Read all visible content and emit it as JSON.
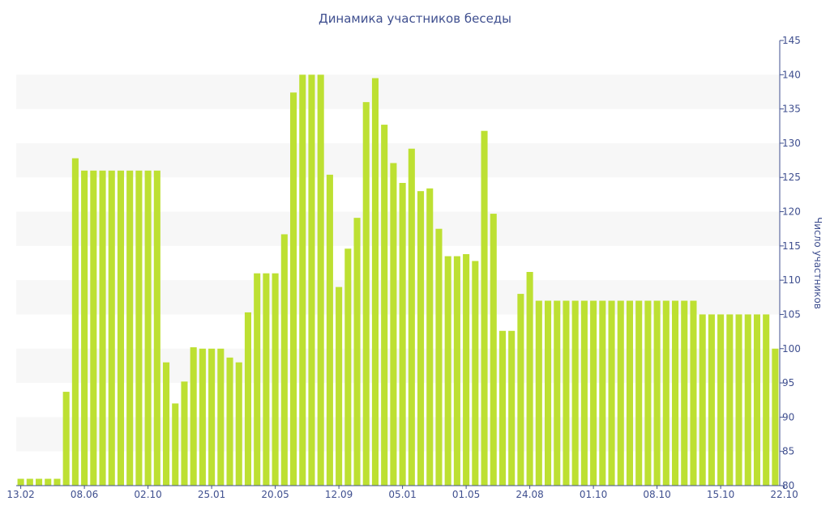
{
  "chart_data": {
    "type": "bar",
    "title": "Динамика участников беседы",
    "ylabel": "Число участников",
    "xlabel": "",
    "ylim": [
      80,
      145
    ],
    "y_ticks": [
      80,
      85,
      90,
      95,
      100,
      105,
      110,
      115,
      120,
      125,
      130,
      135,
      140,
      145
    ],
    "y_axis_position": "right",
    "grid": "alternating horizontal bands",
    "bar_color": "#bde032",
    "x_tick_labels": [
      {
        "label": "13.02",
        "index": 0
      },
      {
        "label": "08.06",
        "index": 7
      },
      {
        "label": "02.10",
        "index": 14
      },
      {
        "label": "25.01",
        "index": 21
      },
      {
        "label": "20.05",
        "index": 28
      },
      {
        "label": "12.09",
        "index": 35
      },
      {
        "label": "05.01",
        "index": 42
      },
      {
        "label": "01.05",
        "index": 49
      },
      {
        "label": "24.08",
        "index": 56
      },
      {
        "label": "01.10",
        "index": 63
      },
      {
        "label": "08.10",
        "index": 70
      },
      {
        "label": "15.10",
        "index": 77
      },
      {
        "label": "22.10",
        "index": 84
      }
    ],
    "values": [
      81,
      81,
      81,
      81,
      81,
      93.7,
      127.8,
      126,
      126,
      126,
      126,
      126,
      126,
      126,
      126,
      126,
      98,
      92,
      95.2,
      100.2,
      100,
      100,
      100,
      98.7,
      98,
      105.3,
      111,
      111,
      111,
      116.7,
      137.4,
      140,
      140,
      140,
      125.4,
      109,
      114.6,
      119.1,
      136,
      139.5,
      132.7,
      127.1,
      124.2,
      129.2,
      123,
      123.4,
      117.5,
      113.5,
      113.5,
      113.8,
      112.8,
      131.8,
      119.7,
      102.6,
      102.6,
      108,
      111.2,
      107,
      107,
      107,
      107,
      107,
      107,
      107,
      107,
      107,
      107,
      107,
      107,
      107,
      107,
      107,
      107,
      107,
      107,
      105,
      105,
      105,
      105,
      105,
      105,
      105,
      105,
      100
    ]
  }
}
